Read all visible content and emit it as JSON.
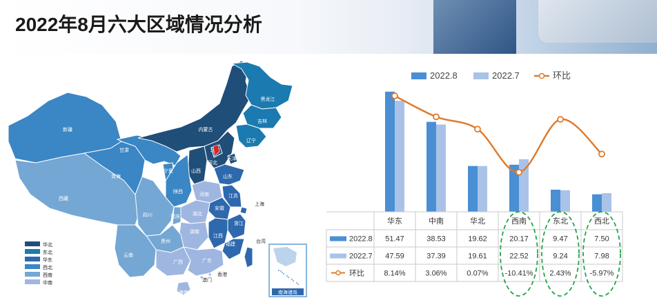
{
  "title": "2022年8月六大区域情况分析",
  "map": {
    "provinces": [
      {
        "name": "新疆",
        "region": "西北"
      },
      {
        "name": "西藏",
        "region": "西南"
      },
      {
        "name": "青海",
        "region": "西北"
      },
      {
        "name": "甘肃",
        "region": "西北"
      },
      {
        "name": "内蒙古",
        "region": "华北"
      },
      {
        "name": "黑龙江",
        "region": "东北"
      },
      {
        "name": "吉林",
        "region": "东北"
      },
      {
        "name": "辽宁",
        "region": "东北"
      },
      {
        "name": "河北",
        "region": "华北"
      },
      {
        "name": "天津",
        "region": "华北"
      },
      {
        "name": "北京",
        "region": "华北"
      },
      {
        "name": "山西",
        "region": "华北"
      },
      {
        "name": "宁夏",
        "region": "西北"
      },
      {
        "name": "陕西",
        "region": "西北"
      },
      {
        "name": "山东",
        "region": "华东"
      },
      {
        "name": "河南",
        "region": "中南"
      },
      {
        "name": "江苏",
        "region": "华东"
      },
      {
        "name": "安徽",
        "region": "华东"
      },
      {
        "name": "上海",
        "region": "华东"
      },
      {
        "name": "湖北",
        "region": "中南"
      },
      {
        "name": "四川",
        "region": "西南"
      },
      {
        "name": "重庆",
        "region": "西南"
      },
      {
        "name": "浙江",
        "region": "华东"
      },
      {
        "name": "湖南",
        "region": "中南"
      },
      {
        "name": "江西",
        "region": "华东"
      },
      {
        "name": "贵州",
        "region": "西南"
      },
      {
        "name": "福建",
        "region": "华东"
      },
      {
        "name": "云南",
        "region": "西南"
      },
      {
        "name": "广西",
        "region": "中南"
      },
      {
        "name": "广东",
        "region": "中南"
      },
      {
        "name": "台湾",
        "region": "华东"
      },
      {
        "name": "香港",
        "region": "中南"
      },
      {
        "name": "澳门",
        "region": "中南"
      },
      {
        "name": "海南",
        "region": "中南"
      }
    ],
    "legend": [
      {
        "label": "华北",
        "color": "#1f4e79"
      },
      {
        "label": "东北",
        "color": "#1b7ab0"
      },
      {
        "label": "华东",
        "color": "#2e68ad"
      },
      {
        "label": "西北",
        "color": "#3b86c4"
      },
      {
        "label": "西南",
        "color": "#74a7d4"
      },
      {
        "label": "中南",
        "color": "#9fb6e0"
      }
    ],
    "inset_label": "南海诸岛"
  },
  "chart_data": {
    "type": "bar",
    "categories": [
      "华东",
      "中南",
      "华北",
      "西南",
      "东北",
      "西北"
    ],
    "series": [
      {
        "name": "2022.8",
        "kind": "bar",
        "color": "#4a8fd4",
        "values": [
          51.47,
          38.53,
          19.62,
          20.17,
          9.47,
          7.5
        ],
        "display": [
          "51.47",
          "38.53",
          "19.62",
          "20.17",
          "9.47",
          "7.50"
        ]
      },
      {
        "name": "2022.7",
        "kind": "bar",
        "color": "#a9c3e8",
        "values": [
          47.59,
          37.39,
          19.61,
          22.52,
          9.24,
          7.98
        ],
        "display": [
          "47.59",
          "37.39",
          "19.61",
          "22.52",
          "9.24",
          "7.98"
        ]
      },
      {
        "name": "环比",
        "kind": "line",
        "color": "#e07b2c",
        "values": [
          8.14,
          3.06,
          0.07,
          -10.41,
          2.43,
          -5.97
        ],
        "display": [
          "8.14%",
          "3.06%",
          "0.07%",
          "-10.41%",
          "2.43%",
          "-5.97%"
        ]
      }
    ],
    "legend_position": "top",
    "ylim": [
      0,
      60
    ],
    "y2lim": [
      -20,
      14
    ],
    "highlighted_columns": [
      "西南",
      "东北",
      "西北"
    ]
  }
}
